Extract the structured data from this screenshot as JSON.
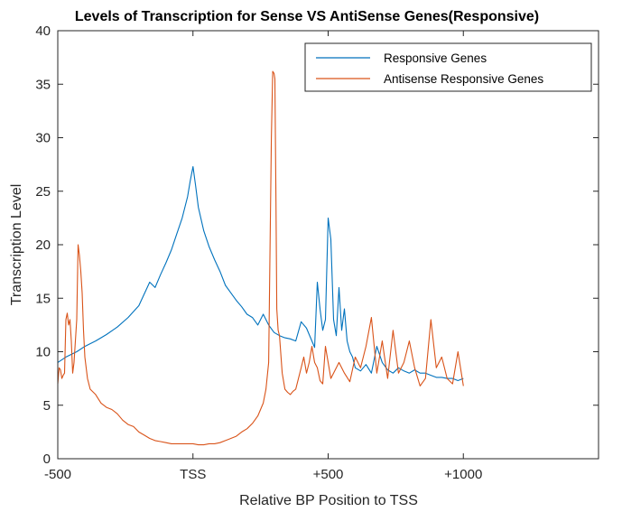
{
  "chart_data": {
    "type": "line",
    "title": "Levels of Transcription for Sense VS AntiSense Genes(Responsive)",
    "xlabel": "Relative BP Position to TSS",
    "ylabel": "Transcription Level",
    "xlim": [
      -500,
      1500
    ],
    "ylim": [
      0,
      40
    ],
    "xticks": [
      {
        "value": -500,
        "label": "-500"
      },
      {
        "value": 0,
        "label": "TSS"
      },
      {
        "value": 500,
        "label": "+500"
      },
      {
        "value": 1000,
        "label": "+1000"
      }
    ],
    "yticks": [
      0,
      5,
      10,
      15,
      20,
      25,
      30,
      35,
      40
    ],
    "legend_position": "top-right",
    "series": [
      {
        "name": "Responsive Genes",
        "color": "#0072BD",
        "x": [
          -500,
          -470,
          -430,
          -400,
          -360,
          -320,
          -280,
          -240,
          -200,
          -160,
          -140,
          -120,
          -100,
          -80,
          -60,
          -40,
          -20,
          -10,
          0,
          10,
          20,
          40,
          60,
          80,
          100,
          120,
          140,
          160,
          180,
          200,
          220,
          240,
          260,
          280,
          300,
          320,
          340,
          360,
          380,
          400,
          420,
          430,
          440,
          450,
          460,
          470,
          480,
          490,
          500,
          510,
          520,
          530,
          540,
          550,
          560,
          570,
          580,
          590,
          600,
          620,
          640,
          660,
          680,
          700,
          720,
          740,
          760,
          780,
          800,
          820,
          840,
          860,
          880,
          900,
          920,
          940,
          960,
          980,
          1000
        ],
        "y": [
          9.0,
          9.5,
          10.0,
          10.5,
          11.0,
          11.6,
          12.3,
          13.2,
          14.3,
          16.5,
          16.0,
          17.2,
          18.3,
          19.5,
          21.0,
          22.5,
          24.5,
          26.0,
          27.3,
          25.5,
          23.5,
          21.3,
          19.8,
          18.6,
          17.5,
          16.2,
          15.5,
          14.8,
          14.2,
          13.5,
          13.2,
          12.5,
          13.5,
          12.5,
          11.8,
          11.5,
          11.3,
          11.2,
          11.0,
          12.8,
          12.2,
          11.6,
          11.0,
          10.4,
          16.5,
          14.0,
          12.0,
          13.0,
          22.5,
          20.5,
          13.0,
          11.5,
          16.0,
          12.0,
          14.0,
          11.0,
          10.0,
          9.5,
          8.5,
          8.2,
          8.8,
          8.0,
          10.5,
          9.0,
          8.3,
          8.0,
          8.5,
          8.2,
          8.0,
          8.3,
          8.0,
          8.0,
          7.8,
          7.6,
          7.6,
          7.5,
          7.5,
          7.3,
          7.5
        ]
      },
      {
        "name": "Antisense Responsive Genes",
        "color": "#D95319",
        "x": [
          -500,
          -495,
          -490,
          -485,
          -480,
          -475,
          -470,
          -465,
          -460,
          -455,
          -450,
          -445,
          -440,
          -435,
          -430,
          -425,
          -420,
          -415,
          -410,
          -405,
          -400,
          -390,
          -380,
          -360,
          -340,
          -320,
          -300,
          -280,
          -260,
          -240,
          -220,
          -200,
          -180,
          -160,
          -140,
          -120,
          -100,
          -80,
          -60,
          -40,
          -20,
          0,
          20,
          40,
          60,
          80,
          100,
          120,
          140,
          160,
          180,
          200,
          220,
          240,
          260,
          270,
          280,
          290,
          295,
          300,
          303,
          307,
          310,
          315,
          320,
          330,
          340,
          350,
          360,
          370,
          380,
          390,
          400,
          410,
          420,
          430,
          440,
          450,
          460,
          470,
          480,
          490,
          500,
          510,
          520,
          540,
          560,
          580,
          600,
          620,
          640,
          660,
          680,
          700,
          720,
          740,
          760,
          780,
          800,
          820,
          840,
          860,
          880,
          900,
          920,
          940,
          960,
          980,
          1000
        ],
        "y": [
          7.0,
          8.5,
          8.3,
          7.5,
          7.8,
          8.0,
          13.0,
          13.6,
          12.5,
          13.0,
          11.0,
          8.0,
          9.0,
          11.0,
          13.0,
          20.0,
          19.0,
          17.5,
          15.5,
          12.0,
          9.5,
          7.5,
          6.5,
          6.0,
          5.2,
          4.8,
          4.6,
          4.2,
          3.6,
          3.2,
          3.0,
          2.5,
          2.2,
          1.9,
          1.7,
          1.6,
          1.5,
          1.4,
          1.4,
          1.4,
          1.4,
          1.4,
          1.3,
          1.3,
          1.4,
          1.4,
          1.5,
          1.7,
          1.9,
          2.1,
          2.5,
          2.8,
          3.3,
          4.0,
          5.2,
          6.5,
          9.0,
          30.0,
          36.2,
          36.0,
          35.5,
          24.0,
          14.0,
          12.0,
          11.5,
          8.0,
          6.5,
          6.2,
          6.0,
          6.3,
          6.5,
          7.5,
          8.5,
          9.5,
          8.0,
          9.0,
          10.5,
          9.0,
          8.5,
          7.3,
          7.0,
          10.5,
          9.0,
          7.5,
          8.0,
          9.0,
          8.0,
          7.2,
          9.5,
          8.5,
          10.5,
          13.2,
          8.0,
          11.0,
          7.5,
          12.0,
          8.0,
          9.0,
          11.0,
          8.5,
          6.8,
          7.5,
          13.0,
          8.5,
          9.5,
          7.5,
          7.0,
          10.0,
          6.8
        ]
      }
    ]
  }
}
